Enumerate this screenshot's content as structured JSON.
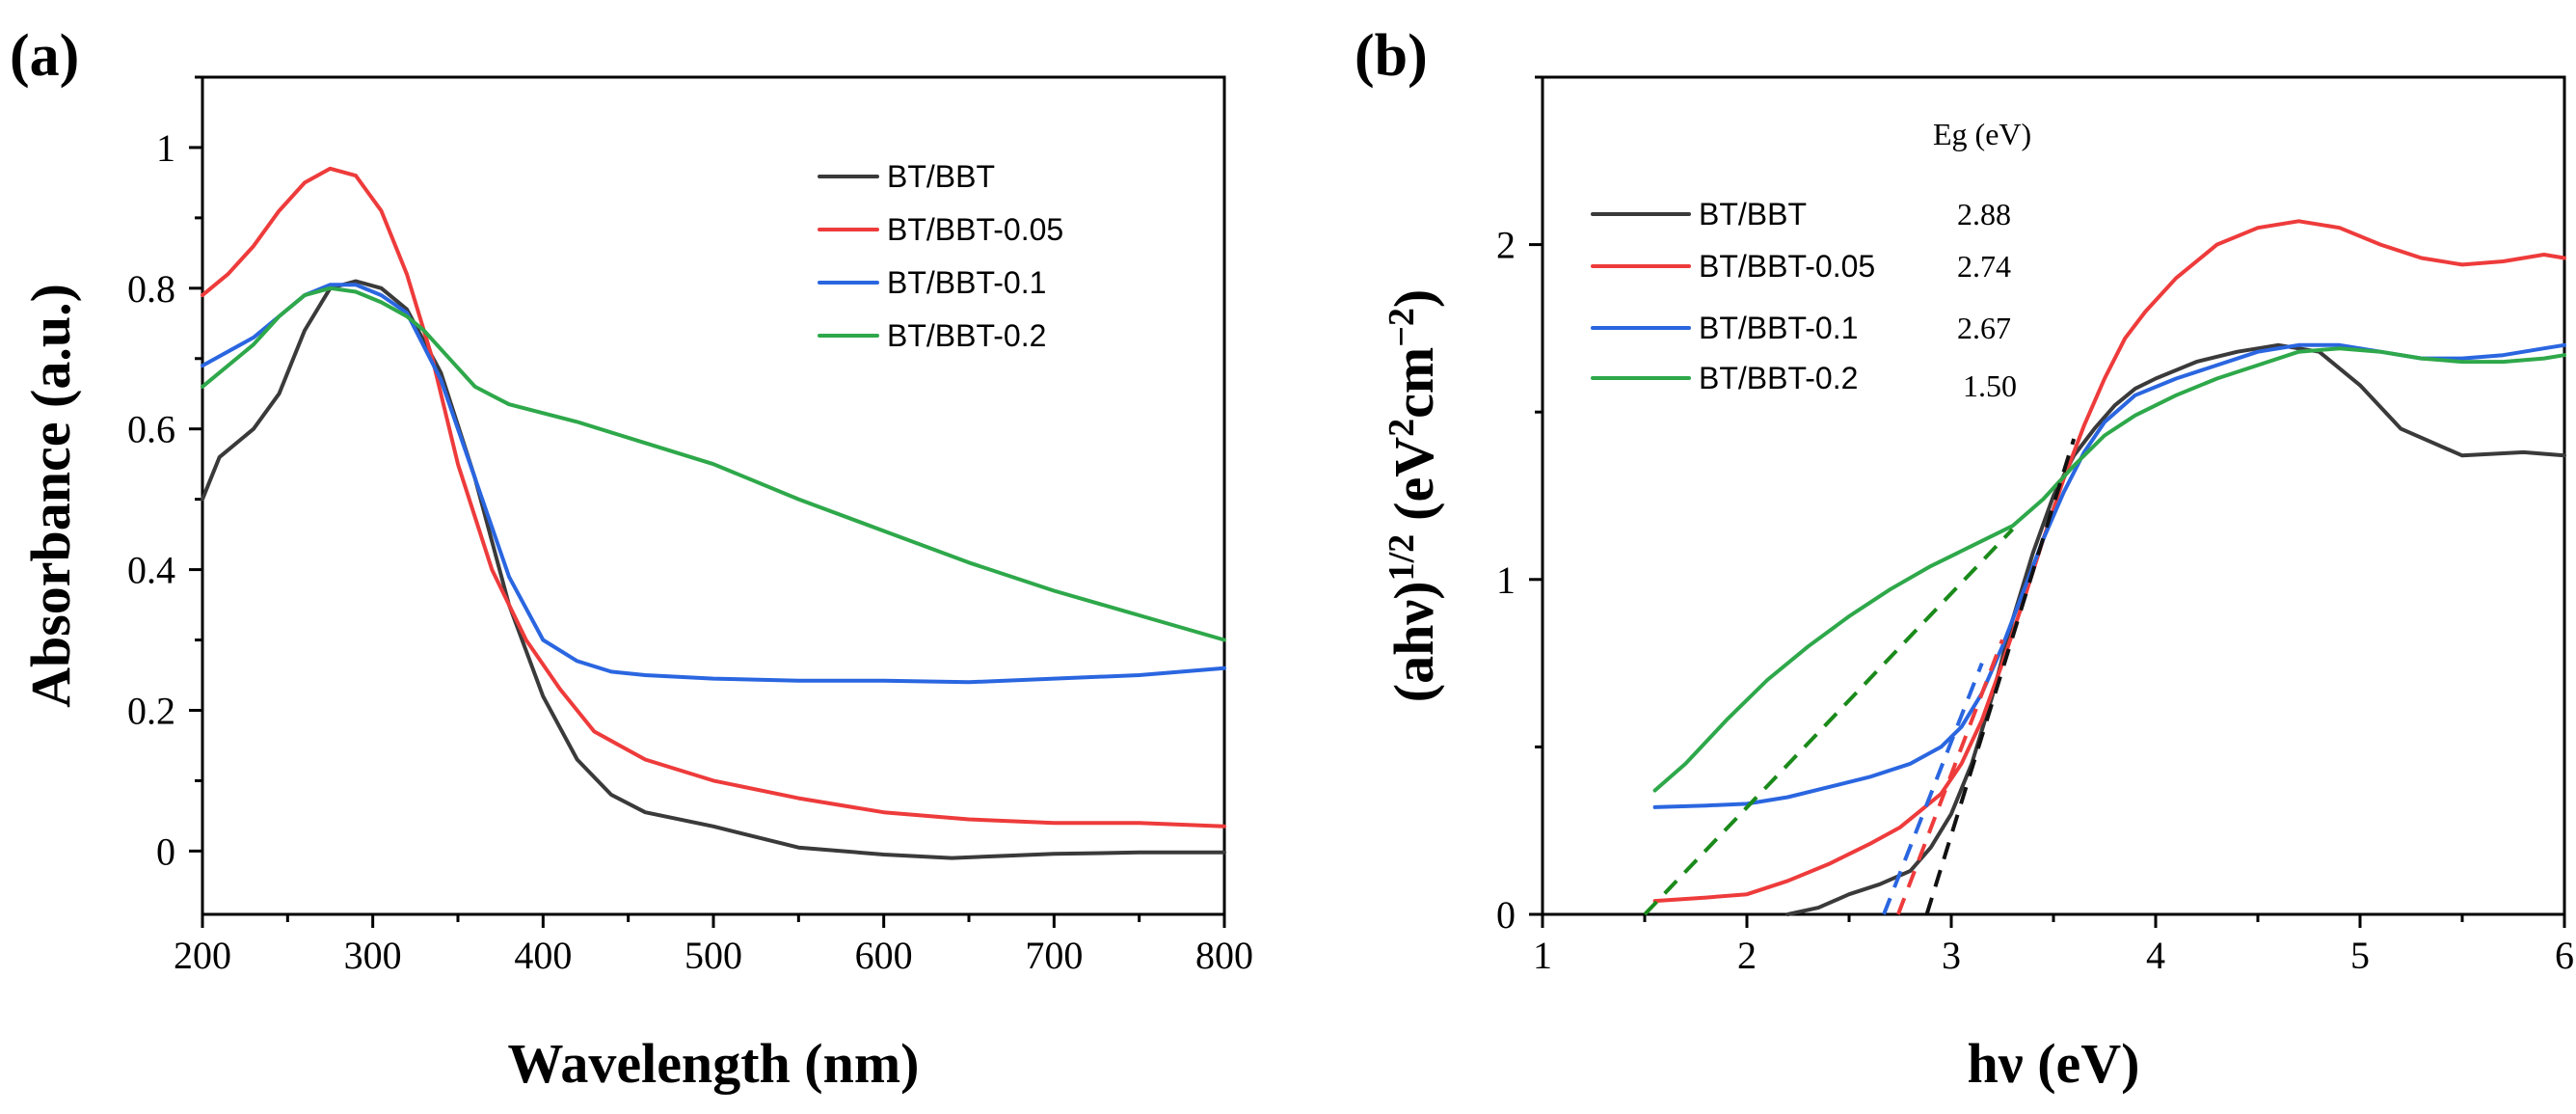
{
  "colors": {
    "BT/BBT": "#3a3a3a",
    "BT/BBT-0.05": "#ee3b3b",
    "BT/BBT-0.1": "#2a66e0",
    "BT/BBT-0.2": "#2ea84a",
    "fit_black": "#111111",
    "fit_red": "#ee3b3b",
    "fit_blue": "#2a66e0",
    "fit_green": "#1a8a1a"
  },
  "chart_data": [
    {
      "panel_label": "(a)",
      "type": "line",
      "xlabel": "Wavelength (nm)",
      "ylabel": "Absorbance (a.u.)",
      "xlim": [
        200,
        800
      ],
      "ylim": [
        -0.09,
        1.1
      ],
      "xticks": [
        200,
        300,
        400,
        500,
        600,
        700,
        800
      ],
      "xtick_labels": [
        "200",
        "300",
        "400",
        "500",
        "600",
        "700",
        "800"
      ],
      "yticks": [
        0,
        0.2,
        0.4,
        0.6,
        0.8,
        1
      ],
      "ytick_labels": [
        "0",
        "0.2",
        "0.4",
        "0.6",
        "0.8",
        "1"
      ],
      "legend_position": "top-right",
      "series": [
        {
          "name": "BT/BBT",
          "x": [
            200,
            210,
            230,
            245,
            260,
            275,
            290,
            305,
            320,
            340,
            360,
            380,
            400,
            420,
            440,
            460,
            500,
            550,
            600,
            640,
            700,
            750,
            800
          ],
          "y": [
            0.5,
            0.56,
            0.6,
            0.65,
            0.74,
            0.8,
            0.81,
            0.8,
            0.77,
            0.68,
            0.53,
            0.35,
            0.22,
            0.13,
            0.08,
            0.055,
            0.035,
            0.005,
            -0.005,
            -0.01,
            -0.004,
            -0.002,
            -0.002
          ]
        },
        {
          "name": "BT/BBT-0.05",
          "x": [
            200,
            215,
            230,
            245,
            260,
            275,
            290,
            305,
            320,
            335,
            350,
            370,
            390,
            410,
            430,
            460,
            500,
            550,
            600,
            650,
            700,
            750,
            800
          ],
          "y": [
            0.79,
            0.82,
            0.86,
            0.91,
            0.95,
            0.97,
            0.96,
            0.91,
            0.82,
            0.7,
            0.55,
            0.4,
            0.3,
            0.23,
            0.17,
            0.13,
            0.1,
            0.075,
            0.055,
            0.045,
            0.04,
            0.04,
            0.035
          ]
        },
        {
          "name": "BT/BBT-0.1",
          "x": [
            200,
            215,
            230,
            245,
            260,
            275,
            290,
            305,
            320,
            340,
            360,
            380,
            400,
            420,
            440,
            460,
            500,
            550,
            600,
            650,
            700,
            750,
            800
          ],
          "y": [
            0.69,
            0.71,
            0.73,
            0.76,
            0.79,
            0.805,
            0.805,
            0.79,
            0.765,
            0.67,
            0.53,
            0.39,
            0.3,
            0.27,
            0.255,
            0.25,
            0.245,
            0.242,
            0.242,
            0.24,
            0.245,
            0.25,
            0.26
          ]
        },
        {
          "name": "BT/BBT-0.2",
          "x": [
            200,
            215,
            230,
            245,
            260,
            275,
            290,
            305,
            320,
            330,
            345,
            360,
            380,
            420,
            460,
            500,
            550,
            600,
            650,
            700,
            750,
            800
          ],
          "y": [
            0.66,
            0.69,
            0.72,
            0.76,
            0.79,
            0.8,
            0.795,
            0.78,
            0.76,
            0.74,
            0.7,
            0.66,
            0.635,
            0.61,
            0.58,
            0.55,
            0.5,
            0.455,
            0.41,
            0.37,
            0.335,
            0.3
          ]
        }
      ]
    },
    {
      "panel_label": "(b)",
      "type": "line",
      "xlabel": "hν (eV)",
      "ylabel_main": "(ahν)",
      "ylabel_exp": "1/2",
      "ylabel_unit_open": "(eV",
      "ylabel_unit_exp1": "2",
      "ylabel_unit_cm": "cm",
      "ylabel_unit_exp2": "−2",
      "ylabel_unit_close": ")",
      "xlim": [
        1,
        6
      ],
      "ylim": [
        0,
        2.5
      ],
      "xticks": [
        1,
        2,
        3,
        4,
        5,
        6
      ],
      "xtick_labels": [
        "1",
        "2",
        "3",
        "4",
        "5",
        "6"
      ],
      "yticks": [
        0,
        1,
        2
      ],
      "ytick_labels": [
        "0",
        "1",
        "2"
      ],
      "legend_position": "top-left",
      "eg_header": "Eg (eV)",
      "eg_values": [
        "2.88",
        "2.74",
        "2.67",
        "1.50"
      ],
      "series": [
        {
          "name": "BT/BBT",
          "x": [
            2.2,
            2.35,
            2.5,
            2.65,
            2.8,
            2.9,
            3.0,
            3.1,
            3.2,
            3.3,
            3.4,
            3.5,
            3.6,
            3.7,
            3.8,
            3.9,
            4.0,
            4.2,
            4.4,
            4.6,
            4.8,
            5.0,
            5.2,
            5.5,
            5.8,
            6.0
          ],
          "y": [
            0.0,
            0.02,
            0.06,
            0.09,
            0.13,
            0.2,
            0.3,
            0.45,
            0.65,
            0.88,
            1.08,
            1.25,
            1.37,
            1.45,
            1.52,
            1.57,
            1.6,
            1.65,
            1.68,
            1.7,
            1.68,
            1.58,
            1.45,
            1.37,
            1.38,
            1.37
          ]
        },
        {
          "name": "BT/BBT-0.05",
          "x": [
            1.55,
            1.8,
            2.0,
            2.2,
            2.4,
            2.6,
            2.75,
            2.85,
            2.95,
            3.05,
            3.15,
            3.25,
            3.35,
            3.45,
            3.55,
            3.65,
            3.75,
            3.85,
            3.95,
            4.1,
            4.3,
            4.5,
            4.7,
            4.9,
            5.1,
            5.3,
            5.5,
            5.7,
            5.9,
            6.0
          ],
          "y": [
            0.04,
            0.05,
            0.06,
            0.1,
            0.15,
            0.21,
            0.26,
            0.31,
            0.36,
            0.45,
            0.58,
            0.75,
            0.93,
            1.12,
            1.3,
            1.46,
            1.6,
            1.72,
            1.8,
            1.9,
            2.0,
            2.05,
            2.07,
            2.05,
            2.0,
            1.96,
            1.94,
            1.95,
            1.97,
            1.96
          ]
        },
        {
          "name": "BT/BBT-0.1",
          "x": [
            1.55,
            1.8,
            2.0,
            2.2,
            2.4,
            2.6,
            2.8,
            2.95,
            3.05,
            3.15,
            3.25,
            3.35,
            3.45,
            3.55,
            3.65,
            3.75,
            3.9,
            4.1,
            4.3,
            4.5,
            4.7,
            4.9,
            5.1,
            5.3,
            5.5,
            5.7,
            5.9,
            6.0
          ],
          "y": [
            0.32,
            0.325,
            0.33,
            0.35,
            0.38,
            0.41,
            0.45,
            0.5,
            0.56,
            0.66,
            0.8,
            0.96,
            1.12,
            1.26,
            1.38,
            1.47,
            1.55,
            1.6,
            1.64,
            1.68,
            1.7,
            1.7,
            1.68,
            1.66,
            1.66,
            1.67,
            1.69,
            1.7
          ]
        },
        {
          "name": "BT/BBT-0.2",
          "x": [
            1.55,
            1.7,
            1.9,
            2.1,
            2.3,
            2.5,
            2.7,
            2.9,
            3.1,
            3.3,
            3.45,
            3.6,
            3.75,
            3.9,
            4.1,
            4.3,
            4.5,
            4.7,
            4.9,
            5.1,
            5.3,
            5.5,
            5.7,
            5.9,
            6.0
          ],
          "y": [
            0.37,
            0.45,
            0.58,
            0.7,
            0.8,
            0.89,
            0.97,
            1.04,
            1.1,
            1.16,
            1.24,
            1.34,
            1.43,
            1.49,
            1.55,
            1.6,
            1.64,
            1.68,
            1.69,
            1.68,
            1.66,
            1.65,
            1.65,
            1.66,
            1.67
          ]
        }
      ],
      "tangent_lines": [
        {
          "name": "BT/BBT fit",
          "color_key": "fit_black",
          "x": [
            2.88,
            3.6
          ],
          "y": [
            0,
            1.42
          ]
        },
        {
          "name": "BT/BBT-0.05 fit",
          "color_key": "fit_red",
          "x": [
            2.74,
            3.25
          ],
          "y": [
            0,
            0.82
          ]
        },
        {
          "name": "BT/BBT-0.1 fit",
          "color_key": "fit_blue",
          "x": [
            2.67,
            3.15
          ],
          "y": [
            0,
            0.75
          ]
        },
        {
          "name": "BT/BBT-0.2 fit",
          "color_key": "fit_green",
          "x": [
            1.5,
            3.3
          ],
          "y": [
            0,
            1.15
          ]
        }
      ]
    }
  ]
}
